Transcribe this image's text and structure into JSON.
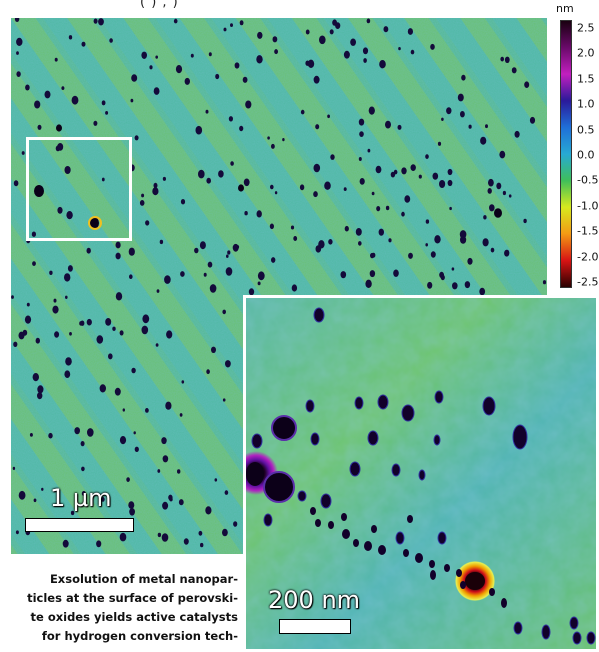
{
  "top_cutoff_text": "(                    )                 ,            )",
  "main_image": {
    "scale_bar_label": "1 µm",
    "roi_marker": "white-square"
  },
  "inset_image": {
    "scale_bar_label": "200 nm"
  },
  "caption_lines": [
    "Exsolution of metal nanopar-",
    "ticles at the surface of perovski-",
    "te oxides yields active catalysts",
    "for hydrogen conversion tech-"
  ],
  "colorbar": {
    "unit": "nm",
    "ticks": [
      "2.5",
      "2.0",
      "1.5",
      "1.0",
      "0.5",
      "0.0",
      "-0.5",
      "-1.0",
      "-1.5",
      "-2.0",
      "-2.5"
    ],
    "colors": [
      "#1a0010",
      "#6a0a6a",
      "#c21fbf",
      "#2a1a9a",
      "#1f6fd8",
      "#27a9d4",
      "#3fbf5a",
      "#d6ea1e",
      "#f39a14",
      "#d81414",
      "#2a0000"
    ]
  }
}
